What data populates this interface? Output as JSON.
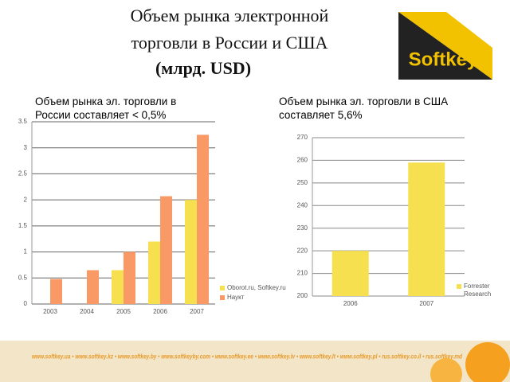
{
  "title_lines": [
    "Объем рынка электронной",
    "торговли в России и США",
    "(млрд. USD)"
  ],
  "logo": "Softkey",
  "footer": "www.softkey.ua • www.softkey.kz • www.softkey.by • www.softkeyby.com • www.softkey.ee • www.softkey.lv • www.softkey.lt • www.softkey.pl • rus.softkey.co.il • rus.softkey.md",
  "chart_data": [
    {
      "type": "bar",
      "subtitle": "Объем рынка эл. торговли в России составляет  < 0,5%",
      "categories": [
        "2003",
        "2004",
        "2005",
        "2006",
        "2007"
      ],
      "series": [
        {
          "name": "Oborot.ru, Softkey.ru",
          "color": "#f7e04f",
          "values": [
            null,
            null,
            0.65,
            1.2,
            2.0
          ]
        },
        {
          "name": "Наукт",
          "color": "#f99a66",
          "values": [
            0.48,
            0.65,
            1.0,
            2.07,
            3.25
          ]
        }
      ],
      "ylim": [
        0,
        3.5
      ],
      "yticks": [
        0,
        0.5,
        1,
        1.5,
        2,
        2.5,
        3,
        3.5
      ],
      "grid": true
    },
    {
      "type": "bar",
      "subtitle": "Объем рынка эл. торговли в США составляет 5,6%",
      "categories": [
        "2006",
        "2007"
      ],
      "series": [
        {
          "name": "Forrester Research",
          "color": "#f7e04f",
          "values": [
            220,
            259
          ]
        }
      ],
      "ylim": [
        200,
        270
      ],
      "yticks": [
        200,
        210,
        220,
        230,
        240,
        250,
        260,
        270
      ],
      "grid": true
    }
  ]
}
